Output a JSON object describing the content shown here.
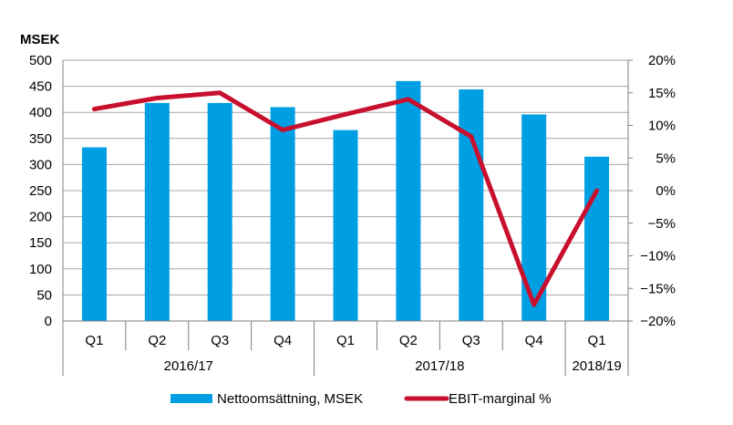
{
  "chart_data": {
    "type": "bar",
    "left_axis_unit": "MSEK",
    "categories": [
      "Q1",
      "Q2",
      "Q3",
      "Q4",
      "Q1",
      "Q2",
      "Q3",
      "Q4",
      "Q1"
    ],
    "groups": [
      {
        "label": "2016/17",
        "span": 4
      },
      {
        "label": "2017/18",
        "span": 4
      },
      {
        "label": "2018/19",
        "span": 1
      }
    ],
    "series": [
      {
        "name": "Nettoomsättning, MSEK",
        "type": "bar",
        "axis": "left",
        "color": "#009fe3",
        "values": [
          333,
          418,
          418,
          410,
          366,
          460,
          444,
          396,
          315
        ]
      },
      {
        "name": "EBIT-marginal %",
        "type": "line",
        "axis": "right",
        "color": "#c8102e",
        "values": [
          12.5,
          14.2,
          15.0,
          9.3,
          11.7,
          14.0,
          8.3,
          -17.5,
          0.0
        ]
      }
    ],
    "ylim_left": [
      0,
      500
    ],
    "yticks_left": [
      "0",
      "50",
      "100",
      "150",
      "200",
      "250",
      "300",
      "350",
      "400",
      "450",
      "500"
    ],
    "ylim_right": [
      -20,
      20
    ],
    "yticks_right": [
      "-20%",
      "-15%",
      "-10%",
      "-5%",
      "0%",
      "5%",
      "10%",
      "15%",
      "20%"
    ],
    "grid": true,
    "legend_position": "bottom"
  }
}
